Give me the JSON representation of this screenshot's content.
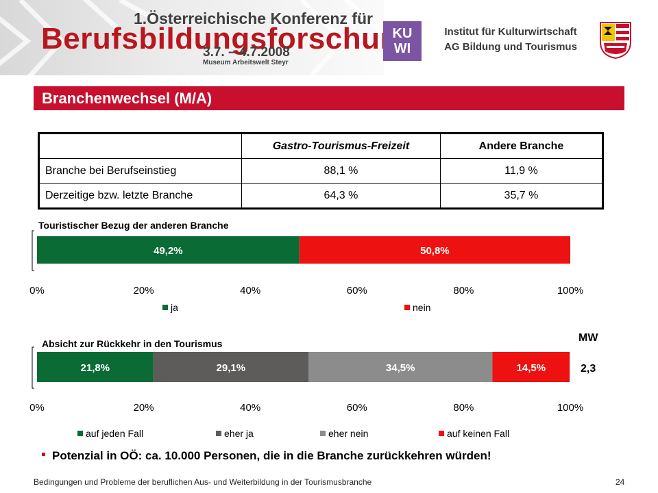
{
  "header": {
    "conference_line1": "1.Österreichische Konferenz für",
    "conference_line2": "Berufsbildungsforschung",
    "dates": "3.7. – 4.7.2008",
    "venue": "Museum Arbeitswelt Steyr",
    "logo_line1": "KU",
    "logo_line2": "WI",
    "institute": "Institut für Kulturwirtschaft",
    "institute_sub": "AG Bildung und Tourismus"
  },
  "slide_title": "Branchenwechsel (M/A)",
  "table": {
    "headers": [
      "",
      "Gastro-Tourismus-Freizeit",
      "Andere Branche"
    ],
    "rows": [
      [
        "Branche bei Berufseinstieg",
        "88,1 %",
        "11,9 %"
      ],
      [
        "Derzeitige bzw. letzte Branche",
        "64,3 %",
        "35,7 %"
      ]
    ]
  },
  "chart_data": [
    {
      "type": "bar",
      "orientation": "horizontal-stacked",
      "title": "Touristischer Bezug der anderen Branche",
      "series": [
        {
          "name": "ja",
          "values": [
            49.2
          ],
          "label": "49,2%",
          "color": "#0a6b35"
        },
        {
          "name": "nein",
          "values": [
            50.8
          ],
          "label": "50,8%",
          "color": "#ee1111"
        }
      ],
      "xlim": [
        0,
        100
      ],
      "ticks": [
        "0%",
        "20%",
        "40%",
        "60%",
        "80%",
        "100%"
      ],
      "legend": "bottom"
    },
    {
      "type": "bar",
      "orientation": "horizontal-stacked",
      "title": "Absicht zur Rückkehr in den Tourismus",
      "series": [
        {
          "name": "auf jeden Fall",
          "values": [
            21.8
          ],
          "label": "21,8%",
          "color": "#0a6b35"
        },
        {
          "name": "eher ja",
          "values": [
            29.1
          ],
          "label": "29,1%",
          "color": "#5e5c5a"
        },
        {
          "name": "eher nein",
          "values": [
            34.5
          ],
          "label": "34,5%",
          "color": "#8c8c8c"
        },
        {
          "name": "auf keinen Fall",
          "values": [
            14.5
          ],
          "label": "14,5%",
          "color": "#ee1111"
        }
      ],
      "xlim": [
        0,
        100
      ],
      "ticks": [
        "0%",
        "20%",
        "40%",
        "60%",
        "80%",
        "100%"
      ],
      "legend": "bottom"
    }
  ],
  "mw": {
    "label": "MW",
    "value": "2,3"
  },
  "conclusion": "Potenzial in OÖ: ca. 10.000 Personen, die in die Branche zurückkehren würden!",
  "footer": "Bedingungen und Probleme der beruflichen Aus- und  Weiterbildung in der Tourismusbranche",
  "page_number": "24"
}
